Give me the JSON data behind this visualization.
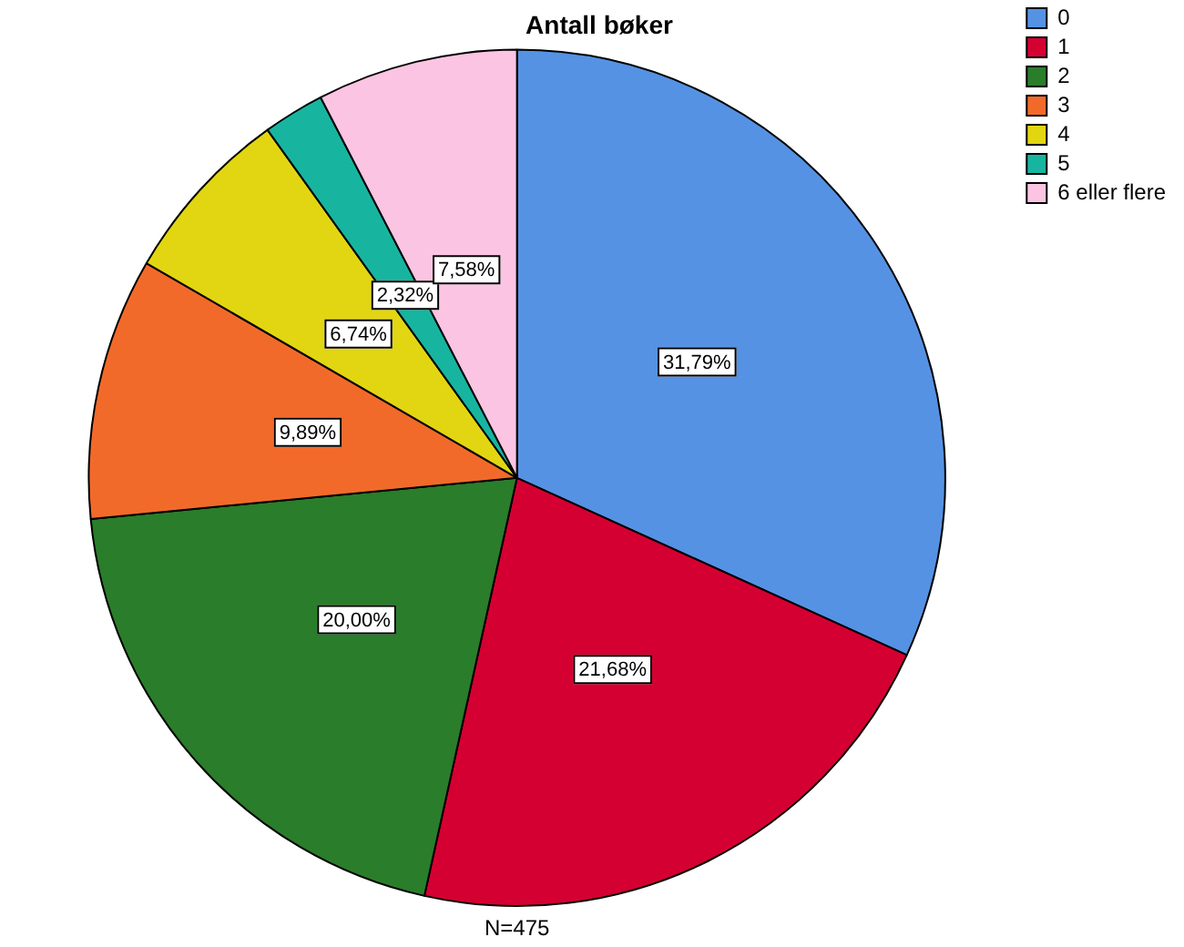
{
  "chart_data": {
    "type": "pie",
    "title": "Antall bøker",
    "categories": [
      "0",
      "1",
      "2",
      "3",
      "4",
      "5",
      "6 eller flere"
    ],
    "values": [
      31.79,
      21.68,
      20.0,
      9.89,
      6.74,
      2.32,
      7.58
    ],
    "colors": [
      "#5592e3",
      "#d50032",
      "#2a7d2a",
      "#f26a2a",
      "#e2d612",
      "#17b5a0",
      "#fbc4e2"
    ],
    "value_labels": [
      "31,79%",
      "21,68%",
      "20,00%",
      "9,89%",
      "6,74%",
      "2,32%",
      "7,58%"
    ],
    "legend": "top right",
    "annotations": [
      "N=475"
    ]
  }
}
